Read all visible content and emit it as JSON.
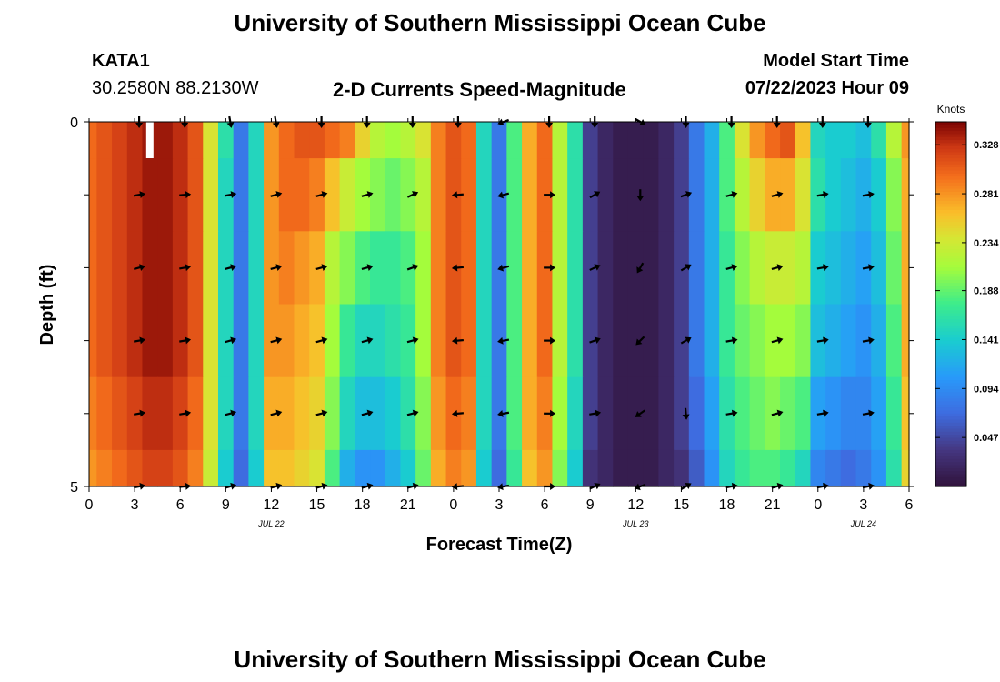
{
  "header": {
    "title": "University of Southern Mississippi Ocean Cube",
    "station": "KATA1",
    "coords": "30.2580N  88.2130W",
    "subtitle": "2-D Currents Speed-Magnitude",
    "model_label": "Model Start Time",
    "model_time": "07/22/2023 Hour 09"
  },
  "footer": {
    "title": "University of Southern Mississippi Ocean Cube"
  },
  "chart_data": {
    "type": "heatmap",
    "title": "2-D Currents Speed-Magnitude",
    "xlabel": "Forecast Time(Z)",
    "ylabel": "Depth (ft)",
    "x_ticks": [
      "0",
      "3",
      "6",
      "9",
      "12",
      "15",
      "18",
      "21",
      "0",
      "3",
      "6",
      "9",
      "12",
      "15",
      "18",
      "21",
      "0",
      "3",
      "6"
    ],
    "date_labels": [
      {
        "label": "JUL 22",
        "tick_index": 4
      },
      {
        "label": "JUL 23",
        "tick_index": 12
      },
      {
        "label": "JUL 24",
        "tick_index": 17
      }
    ],
    "y_ticks": [
      "0",
      "",
      "",
      "",
      "",
      "5"
    ],
    "ylim": [
      0,
      5
    ],
    "x_hours_range": [
      0,
      54
    ],
    "colorbar": {
      "unit": "Knots",
      "ticks": [
        "0.328",
        "0.281",
        "0.234",
        "0.188",
        "0.141",
        "0.094",
        "0.047"
      ],
      "tick_values": [
        0.328,
        0.281,
        0.234,
        0.188,
        0.141,
        0.094,
        0.047
      ],
      "range": [
        0.0,
        0.35
      ]
    },
    "depth_levels": 6,
    "time_hours": [
      0,
      1,
      2,
      3,
      4,
      5,
      6,
      7,
      8,
      9,
      10,
      11,
      12,
      13,
      14,
      15,
      16,
      17,
      18,
      19,
      20,
      21,
      22,
      23,
      24,
      25,
      26,
      27,
      28,
      29,
      30,
      31,
      32,
      33,
      34,
      35,
      36,
      37,
      38,
      39,
      40,
      41,
      42,
      43,
      44,
      45,
      46,
      47,
      48,
      49,
      50,
      51,
      52,
      53,
      54
    ],
    "speed_surface": [
      0.3,
      0.31,
      0.32,
      0.33,
      0.34,
      0.34,
      0.33,
      0.31,
      0.24,
      0.16,
      0.08,
      0.15,
      0.28,
      0.3,
      0.31,
      0.31,
      0.3,
      0.29,
      0.25,
      0.22,
      0.21,
      0.22,
      0.24,
      0.29,
      0.31,
      0.3,
      0.15,
      0.08,
      0.18,
      0.27,
      0.3,
      0.22,
      0.16,
      0.04,
      0.02,
      0.01,
      0.01,
      0.01,
      0.02,
      0.04,
      0.08,
      0.12,
      0.18,
      0.24,
      0.28,
      0.3,
      0.31,
      0.26,
      0.15,
      0.14,
      0.14,
      0.13,
      0.16,
      0.22,
      0.28
    ],
    "speed_profile": [
      [
        0.3,
        0.31,
        0.32,
        0.33,
        0.34,
        0.34,
        0.33,
        0.31,
        0.24,
        0.16,
        0.08,
        0.15,
        0.28,
        0.3,
        0.31,
        0.31,
        0.3,
        0.29,
        0.25,
        0.22,
        0.21,
        0.22,
        0.24,
        0.29,
        0.31,
        0.3,
        0.15,
        0.08,
        0.18,
        0.27,
        0.3,
        0.22,
        0.16,
        0.04,
        0.02,
        0.01,
        0.01,
        0.01,
        0.02,
        0.04,
        0.08,
        0.12,
        0.18,
        0.24,
        0.28,
        0.3,
        0.31,
        0.26,
        0.15,
        0.14,
        0.14,
        0.13,
        0.16,
        0.22,
        0.28
      ],
      [
        0.3,
        0.31,
        0.32,
        0.33,
        0.34,
        0.34,
        0.33,
        0.31,
        0.24,
        0.15,
        0.08,
        0.15,
        0.28,
        0.3,
        0.3,
        0.29,
        0.26,
        0.23,
        0.21,
        0.2,
        0.19,
        0.2,
        0.22,
        0.29,
        0.31,
        0.3,
        0.15,
        0.08,
        0.18,
        0.27,
        0.3,
        0.22,
        0.16,
        0.04,
        0.02,
        0.01,
        0.01,
        0.01,
        0.02,
        0.04,
        0.08,
        0.12,
        0.18,
        0.22,
        0.25,
        0.27,
        0.27,
        0.24,
        0.16,
        0.14,
        0.13,
        0.12,
        0.14,
        0.2,
        0.27
      ],
      [
        0.3,
        0.31,
        0.32,
        0.33,
        0.34,
        0.34,
        0.33,
        0.31,
        0.24,
        0.15,
        0.08,
        0.15,
        0.28,
        0.29,
        0.28,
        0.27,
        0.22,
        0.2,
        0.18,
        0.17,
        0.17,
        0.18,
        0.21,
        0.29,
        0.31,
        0.3,
        0.15,
        0.08,
        0.18,
        0.27,
        0.3,
        0.22,
        0.16,
        0.04,
        0.02,
        0.01,
        0.01,
        0.01,
        0.02,
        0.04,
        0.08,
        0.12,
        0.17,
        0.2,
        0.22,
        0.23,
        0.23,
        0.22,
        0.14,
        0.13,
        0.12,
        0.11,
        0.13,
        0.19,
        0.27
      ],
      [
        0.3,
        0.31,
        0.32,
        0.33,
        0.34,
        0.34,
        0.33,
        0.31,
        0.24,
        0.15,
        0.08,
        0.15,
        0.28,
        0.28,
        0.27,
        0.26,
        0.21,
        0.17,
        0.15,
        0.15,
        0.16,
        0.17,
        0.21,
        0.29,
        0.31,
        0.3,
        0.15,
        0.08,
        0.18,
        0.27,
        0.3,
        0.22,
        0.16,
        0.04,
        0.02,
        0.01,
        0.01,
        0.01,
        0.02,
        0.04,
        0.08,
        0.12,
        0.17,
        0.19,
        0.2,
        0.21,
        0.21,
        0.2,
        0.13,
        0.12,
        0.11,
        0.1,
        0.12,
        0.18,
        0.27
      ],
      [
        0.29,
        0.3,
        0.31,
        0.32,
        0.33,
        0.33,
        0.32,
        0.3,
        0.24,
        0.15,
        0.08,
        0.15,
        0.27,
        0.27,
        0.26,
        0.25,
        0.2,
        0.15,
        0.13,
        0.13,
        0.14,
        0.16,
        0.2,
        0.28,
        0.3,
        0.29,
        0.15,
        0.08,
        0.18,
        0.27,
        0.29,
        0.21,
        0.15,
        0.04,
        0.02,
        0.01,
        0.01,
        0.01,
        0.02,
        0.04,
        0.07,
        0.11,
        0.16,
        0.18,
        0.19,
        0.2,
        0.19,
        0.18,
        0.11,
        0.1,
        0.09,
        0.09,
        0.11,
        0.17,
        0.26
      ],
      [
        0.28,
        0.29,
        0.3,
        0.31,
        0.32,
        0.32,
        0.31,
        0.29,
        0.23,
        0.14,
        0.07,
        0.14,
        0.26,
        0.26,
        0.25,
        0.24,
        0.18,
        0.12,
        0.1,
        0.1,
        0.12,
        0.14,
        0.19,
        0.27,
        0.29,
        0.28,
        0.14,
        0.07,
        0.17,
        0.26,
        0.28,
        0.2,
        0.14,
        0.03,
        0.02,
        0.01,
        0.01,
        0.01,
        0.02,
        0.03,
        0.06,
        0.1,
        0.15,
        0.17,
        0.18,
        0.18,
        0.17,
        0.15,
        0.09,
        0.08,
        0.07,
        0.08,
        0.1,
        0.16,
        0.25
      ]
    ],
    "arrow_times": [
      3,
      6,
      9,
      12,
      15,
      18,
      21,
      24,
      27,
      30,
      33,
      36,
      39,
      42,
      45,
      48,
      51
    ],
    "arrow_angles_deg": [
      [
        -90,
        -90,
        -80,
        -80,
        -90,
        -90,
        -90,
        -90,
        200,
        -90,
        -90,
        -30,
        -90,
        -90,
        -90,
        -90,
        -90
      ],
      [
        10,
        5,
        10,
        15,
        15,
        15,
        25,
        185,
        195,
        0,
        30,
        -90,
        20,
        15,
        15,
        10,
        10
      ],
      [
        15,
        10,
        15,
        15,
        15,
        15,
        20,
        185,
        195,
        0,
        25,
        -120,
        30,
        15,
        15,
        10,
        10
      ],
      [
        10,
        10,
        15,
        15,
        15,
        15,
        15,
        185,
        190,
        0,
        20,
        -135,
        30,
        10,
        15,
        10,
        10
      ],
      [
        10,
        10,
        15,
        15,
        15,
        15,
        15,
        185,
        190,
        0,
        10,
        -145,
        -85,
        10,
        15,
        10,
        10
      ],
      [
        10,
        5,
        15,
        15,
        15,
        15,
        15,
        185,
        190,
        0,
        25,
        -160,
        30,
        10,
        15,
        10,
        10
      ]
    ],
    "missing_cell": {
      "depth_index": 0,
      "hour": 4
    }
  }
}
